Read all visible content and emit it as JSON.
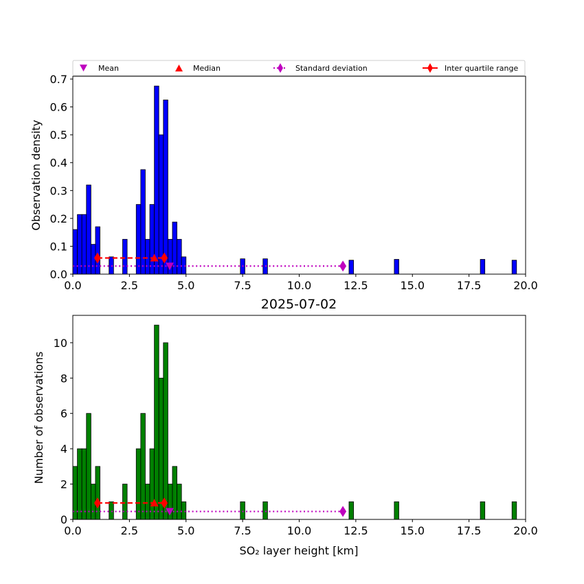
{
  "chart_data": [
    {
      "type": "bar",
      "panel": "top",
      "title": "",
      "xlabel": "",
      "ylabel": "Observation density",
      "xlim": [
        0,
        20
      ],
      "ylim": [
        0,
        0.71
      ],
      "xticks": [
        "0.0",
        "2.5",
        "5.0",
        "7.5",
        "10.0",
        "12.5",
        "15.0",
        "17.5",
        "20.0"
      ],
      "xtick_values": [
        0,
        2.5,
        5,
        7.5,
        10,
        12.5,
        15,
        17.5,
        20
      ],
      "yticks": [
        "0.0",
        "0.1",
        "0.2",
        "0.3",
        "0.4",
        "0.5",
        "0.6",
        "0.7"
      ],
      "ytick_values": [
        0,
        0.1,
        0.2,
        0.3,
        0.4,
        0.5,
        0.6,
        0.7
      ],
      "bar_color": "#0000ff",
      "bin_width": 0.2,
      "bins": [
        {
          "x": 0.0,
          "value": 0.16
        },
        {
          "x": 0.2,
          "value": 0.214
        },
        {
          "x": 0.4,
          "value": 0.214
        },
        {
          "x": 0.6,
          "value": 0.32
        },
        {
          "x": 0.8,
          "value": 0.107
        },
        {
          "x": 1.0,
          "value": 0.17
        },
        {
          "x": 1.6,
          "value": 0.062
        },
        {
          "x": 2.2,
          "value": 0.125
        },
        {
          "x": 2.8,
          "value": 0.25
        },
        {
          "x": 3.0,
          "value": 0.375
        },
        {
          "x": 3.2,
          "value": 0.125
        },
        {
          "x": 3.4,
          "value": 0.25
        },
        {
          "x": 3.6,
          "value": 0.675
        },
        {
          "x": 3.8,
          "value": 0.5
        },
        {
          "x": 4.0,
          "value": 0.625
        },
        {
          "x": 4.2,
          "value": 0.125
        },
        {
          "x": 4.4,
          "value": 0.187
        },
        {
          "x": 4.6,
          "value": 0.125
        },
        {
          "x": 4.8,
          "value": 0.062
        },
        {
          "x": 7.4,
          "value": 0.055
        },
        {
          "x": 8.4,
          "value": 0.055
        },
        {
          "x": 12.2,
          "value": 0.05
        },
        {
          "x": 14.2,
          "value": 0.053
        },
        {
          "x": 18.0,
          "value": 0.053
        },
        {
          "x": 19.4,
          "value": 0.05
        }
      ],
      "markers": {
        "mean": {
          "x": 4.28,
          "y": 0.029
        },
        "median": {
          "x": 3.6,
          "y": 0.058
        },
        "std": {
          "x0": 0,
          "x1": 11.93,
          "y": 0.029
        },
        "iqr": {
          "x0": 1.09,
          "x1": 4.04,
          "y": 0.058
        }
      }
    },
    {
      "type": "bar",
      "panel": "bottom",
      "title": "2025-07-02",
      "xlabel": "SO₂ layer height [km]",
      "ylabel": "Number of observations",
      "xlim": [
        0,
        20
      ],
      "ylim": [
        0,
        11.55
      ],
      "xticks": [
        "0.0",
        "2.5",
        "5.0",
        "7.5",
        "10.0",
        "12.5",
        "15.0",
        "17.5",
        "20.0"
      ],
      "xtick_values": [
        0,
        2.5,
        5,
        7.5,
        10,
        12.5,
        15,
        17.5,
        20
      ],
      "yticks": [
        "0",
        "2",
        "4",
        "6",
        "8",
        "10"
      ],
      "ytick_values": [
        0,
        2,
        4,
        6,
        8,
        10
      ],
      "bar_color": "#008000",
      "bin_width": 0.2,
      "bins": [
        {
          "x": 0.0,
          "value": 3
        },
        {
          "x": 0.2,
          "value": 4
        },
        {
          "x": 0.4,
          "value": 4
        },
        {
          "x": 0.6,
          "value": 6
        },
        {
          "x": 0.8,
          "value": 2
        },
        {
          "x": 1.0,
          "value": 3
        },
        {
          "x": 1.6,
          "value": 1
        },
        {
          "x": 2.2,
          "value": 2
        },
        {
          "x": 2.8,
          "value": 4
        },
        {
          "x": 3.0,
          "value": 6
        },
        {
          "x": 3.2,
          "value": 2
        },
        {
          "x": 3.4,
          "value": 4
        },
        {
          "x": 3.6,
          "value": 11
        },
        {
          "x": 3.8,
          "value": 8
        },
        {
          "x": 4.0,
          "value": 10
        },
        {
          "x": 4.2,
          "value": 2
        },
        {
          "x": 4.4,
          "value": 3
        },
        {
          "x": 4.6,
          "value": 2
        },
        {
          "x": 4.8,
          "value": 1
        },
        {
          "x": 7.4,
          "value": 1
        },
        {
          "x": 8.4,
          "value": 1
        },
        {
          "x": 12.2,
          "value": 1
        },
        {
          "x": 14.2,
          "value": 1
        },
        {
          "x": 18.0,
          "value": 1
        },
        {
          "x": 19.4,
          "value": 1
        }
      ],
      "markers": {
        "mean": {
          "x": 4.28,
          "y": 0.45
        },
        "median": {
          "x": 3.6,
          "y": 0.93
        },
        "std": {
          "x0": 0,
          "x1": 11.93,
          "y": 0.45
        },
        "iqr": {
          "x0": 1.09,
          "x1": 4.04,
          "y": 0.93
        }
      }
    }
  ],
  "legend": {
    "placement": "top",
    "items": [
      {
        "label": "Mean",
        "color": "#bf00bf",
        "symbol": "triangle-down"
      },
      {
        "label": "Median",
        "color": "#ff0000",
        "symbol": "triangle-up"
      },
      {
        "label": "Standard deviation",
        "color": "#bf00bf",
        "symbol": "diamond-dotted"
      },
      {
        "label": "Inter quartile range",
        "color": "#ff0000",
        "symbol": "diamond-line"
      }
    ]
  }
}
